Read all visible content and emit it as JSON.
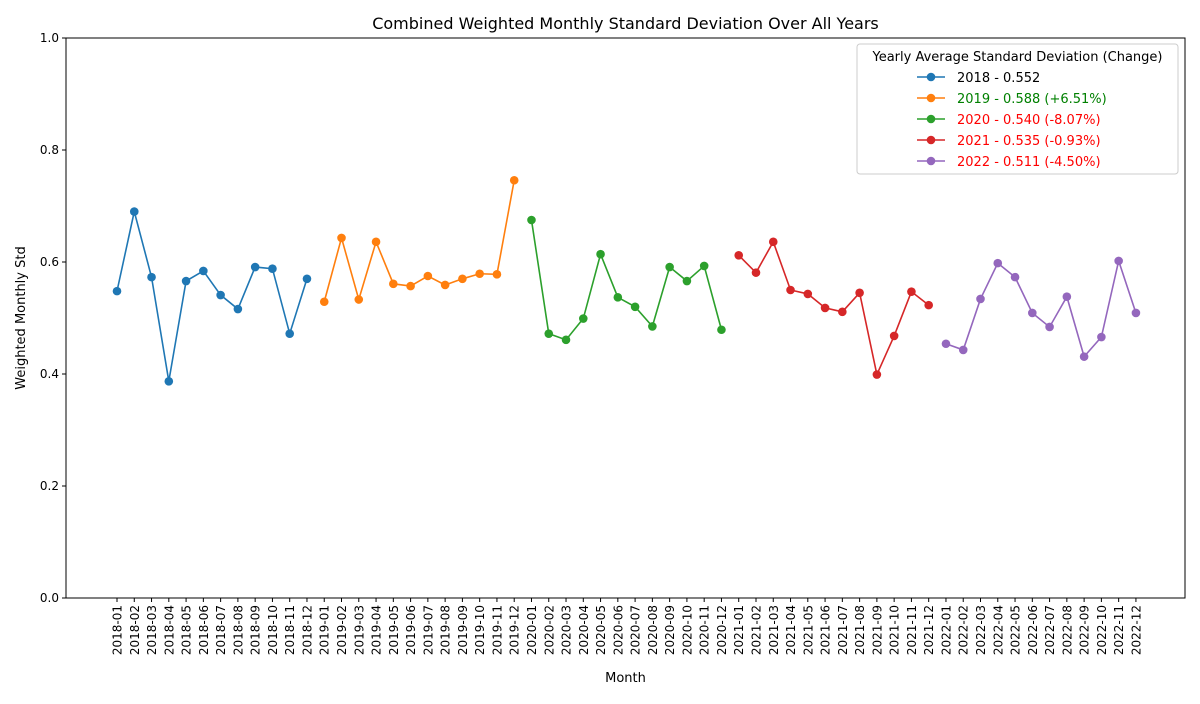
{
  "chart_data": {
    "type": "line",
    "title": "Combined Weighted Monthly Standard Deviation Over All Years",
    "xlabel": "Month",
    "ylabel": "Weighted Monthly Std",
    "ylim": [
      0,
      1
    ],
    "yticks": [
      "0.0",
      "0.2",
      "0.4",
      "0.6",
      "0.8",
      "1.0"
    ],
    "grid": false,
    "legend": {
      "title": "Yearly Average Standard Deviation (Change)",
      "placement": "top-right"
    },
    "series": [
      {
        "name": "2018 - 0.552",
        "color": "#1f77b4",
        "label_color": "#000000",
        "x": [
          "2018-01",
          "2018-02",
          "2018-03",
          "2018-04",
          "2018-05",
          "2018-06",
          "2018-07",
          "2018-08",
          "2018-09",
          "2018-10",
          "2018-11",
          "2018-12"
        ],
        "values": [
          0.548,
          0.69,
          0.573,
          0.387,
          0.566,
          0.584,
          0.541,
          0.516,
          0.591,
          0.588,
          0.472,
          0.57
        ]
      },
      {
        "name": "2019 - 0.588 (+6.51%)",
        "color": "#ff7f0e",
        "label_color": "#008000",
        "x": [
          "2019-01",
          "2019-02",
          "2019-03",
          "2019-04",
          "2019-05",
          "2019-06",
          "2019-07",
          "2019-08",
          "2019-09",
          "2019-10",
          "2019-11",
          "2019-12"
        ],
        "values": [
          0.529,
          0.643,
          0.533,
          0.636,
          0.561,
          0.557,
          0.575,
          0.559,
          0.57,
          0.579,
          0.578,
          0.746
        ]
      },
      {
        "name": "2020 - 0.540 (-8.07%)",
        "color": "#2ca02c",
        "label_color": "#ff0000",
        "x": [
          "2020-01",
          "2020-02",
          "2020-03",
          "2020-04",
          "2020-05",
          "2020-06",
          "2020-07",
          "2020-08",
          "2020-09",
          "2020-10",
          "2020-11",
          "2020-12"
        ],
        "values": [
          0.675,
          0.472,
          0.461,
          0.499,
          0.614,
          0.537,
          0.52,
          0.485,
          0.591,
          0.566,
          0.593,
          0.479
        ]
      },
      {
        "name": "2021 - 0.535 (-0.93%)",
        "color": "#d62728",
        "label_color": "#ff0000",
        "x": [
          "2021-01",
          "2021-02",
          "2021-03",
          "2021-04",
          "2021-05",
          "2021-06",
          "2021-07",
          "2021-08",
          "2021-09",
          "2021-10",
          "2021-11",
          "2021-12"
        ],
        "values": [
          0.612,
          0.581,
          0.636,
          0.55,
          0.543,
          0.518,
          0.511,
          0.545,
          0.399,
          0.468,
          0.547,
          0.523
        ]
      },
      {
        "name": "2022 - 0.511 (-4.50%)",
        "color": "#9467bd",
        "label_color": "#ff0000",
        "x": [
          "2022-01",
          "2022-02",
          "2022-03",
          "2022-04",
          "2022-05",
          "2022-06",
          "2022-07",
          "2022-08",
          "2022-09",
          "2022-10",
          "2022-11",
          "2022-12"
        ],
        "values": [
          0.454,
          0.443,
          0.534,
          0.598,
          0.573,
          0.509,
          0.484,
          0.538,
          0.431,
          0.466,
          0.602,
          0.509
        ]
      }
    ]
  }
}
